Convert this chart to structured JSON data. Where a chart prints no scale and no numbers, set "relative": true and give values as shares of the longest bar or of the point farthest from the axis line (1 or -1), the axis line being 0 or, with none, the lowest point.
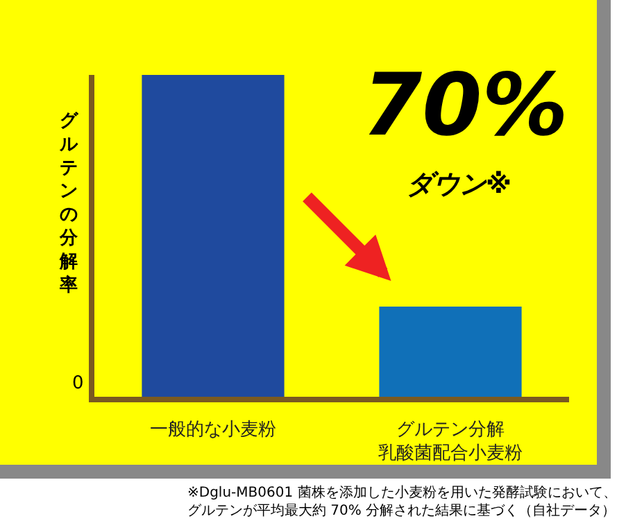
{
  "chart_data": {
    "type": "bar",
    "relative": true,
    "ylabel": "グルテンの分解率",
    "categories": [
      "一般的な小麦粉",
      "グルテン分解乳酸菌配合小麦粉"
    ],
    "values": [
      1,
      0.28
    ],
    "colors": [
      "#1f4a9e",
      "#1070b8"
    ],
    "annotations": [
      "0",
      "70%",
      "ダウン※",
      "※Dglu-MB0601 菌株を添加した小麦粉を用いた発酵試験において、グルテンが平均最大約 70% 分解された結果に基づく（自社データ）"
    ],
    "grid": false,
    "legend": false
  }
}
